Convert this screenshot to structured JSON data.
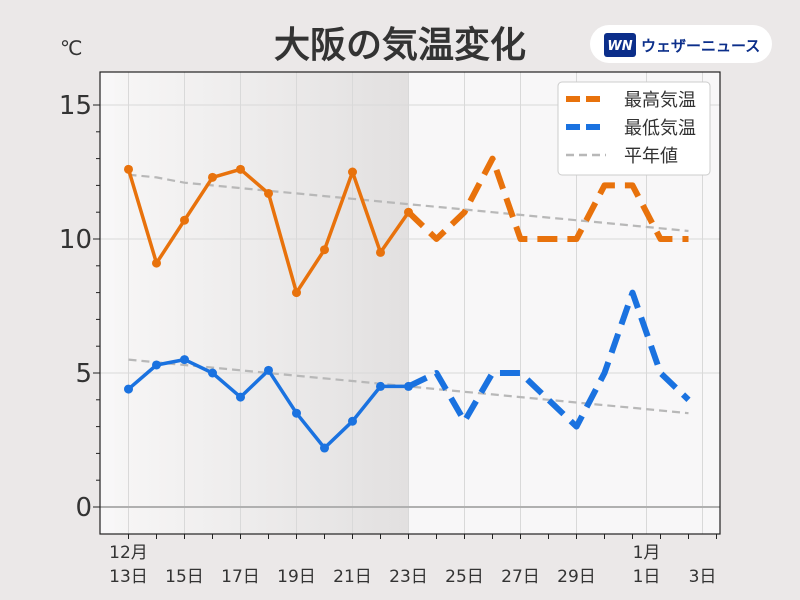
{
  "header": {
    "title": "大阪の気温変化",
    "unit": "℃",
    "brand_mark": "WN",
    "brand_name": "ウェザーニュース"
  },
  "colors": {
    "high": "#e8720c",
    "low": "#1a72e0",
    "normal": "#b8b8b8",
    "brand": "#0b2e8a"
  },
  "chart_data": {
    "type": "line",
    "title": "大阪の気温変化",
    "ylabel": "℃",
    "ylim": [
      -1,
      16
    ],
    "yticks": [
      0,
      5,
      10,
      15
    ],
    "grid": true,
    "legend_position": "top-right",
    "x_labels": [
      {
        "day": 1,
        "month": "12月",
        "date": "13日"
      },
      {
        "day": 3,
        "month": "",
        "date": "15日"
      },
      {
        "day": 5,
        "month": "",
        "date": "17日"
      },
      {
        "day": 7,
        "month": "",
        "date": "19日"
      },
      {
        "day": 9,
        "month": "",
        "date": "21日"
      },
      {
        "day": 11,
        "month": "",
        "date": "23日"
      },
      {
        "day": 13,
        "month": "",
        "date": "25日"
      },
      {
        "day": 15,
        "month": "",
        "date": "27日"
      },
      {
        "day": 17,
        "month": "",
        "date": "29日"
      },
      {
        "day": 19.5,
        "month": "1月",
        "date": "1日"
      },
      {
        "day": 21.5,
        "month": "",
        "date": "3日"
      }
    ],
    "observed_shading": {
      "from": 0.5,
      "to": 11
    },
    "series": [
      {
        "name": "最高気温",
        "observed": [
          [
            1,
            12.6
          ],
          [
            2,
            9.1
          ],
          [
            3,
            10.7
          ],
          [
            4,
            12.3
          ],
          [
            5,
            12.6
          ],
          [
            6,
            11.7
          ],
          [
            7,
            8.0
          ],
          [
            8,
            9.6
          ],
          [
            9,
            12.5
          ],
          [
            10,
            9.5
          ],
          [
            11,
            11.0
          ]
        ],
        "forecast": [
          [
            11,
            11.0
          ],
          [
            12,
            10.0
          ],
          [
            13,
            11.0
          ],
          [
            14,
            13.0
          ],
          [
            15,
            10.0
          ],
          [
            16,
            10.0
          ],
          [
            17,
            10.0
          ],
          [
            18,
            12.0
          ],
          [
            19,
            12.0
          ],
          [
            20,
            10.0
          ],
          [
            21,
            10.0
          ]
        ]
      },
      {
        "name": "最低気温",
        "observed": [
          [
            1,
            4.4
          ],
          [
            2,
            5.3
          ],
          [
            3,
            5.5
          ],
          [
            4,
            5.0
          ],
          [
            5,
            4.1
          ],
          [
            6,
            5.1
          ],
          [
            7,
            3.5
          ],
          [
            8,
            2.2
          ],
          [
            9,
            3.2
          ],
          [
            10,
            4.5
          ],
          [
            11,
            4.5
          ]
        ],
        "forecast": [
          [
            11,
            4.5
          ],
          [
            12,
            5.0
          ],
          [
            13,
            3.2
          ],
          [
            14,
            5.0
          ],
          [
            15,
            5.0
          ],
          [
            16,
            4.0
          ],
          [
            17,
            3.0
          ],
          [
            18,
            5.0
          ],
          [
            19,
            8.0
          ],
          [
            20,
            5.0
          ],
          [
            21,
            4.0
          ]
        ]
      },
      {
        "name": "平年値",
        "normal_high": [
          [
            1,
            12.4
          ],
          [
            2,
            12.3
          ],
          [
            3,
            12.1
          ],
          [
            4,
            12.0
          ],
          [
            5,
            11.9
          ],
          [
            6,
            11.8
          ],
          [
            7,
            11.7
          ],
          [
            8,
            11.6
          ],
          [
            9,
            11.5
          ],
          [
            10,
            11.4
          ],
          [
            11,
            11.3
          ],
          [
            12,
            11.2
          ],
          [
            13,
            11.1
          ],
          [
            14,
            11.0
          ],
          [
            15,
            10.9
          ],
          [
            16,
            10.8
          ],
          [
            17,
            10.7
          ],
          [
            18,
            10.6
          ],
          [
            19,
            10.5
          ],
          [
            20,
            10.4
          ],
          [
            21,
            10.3
          ]
        ],
        "normal_low": [
          [
            1,
            5.5
          ],
          [
            2,
            5.4
          ],
          [
            3,
            5.3
          ],
          [
            4,
            5.2
          ],
          [
            5,
            5.1
          ],
          [
            6,
            5.0
          ],
          [
            7,
            4.9
          ],
          [
            8,
            4.8
          ],
          [
            9,
            4.7
          ],
          [
            10,
            4.6
          ],
          [
            11,
            4.5
          ],
          [
            12,
            4.4
          ],
          [
            13,
            4.3
          ],
          [
            14,
            4.2
          ],
          [
            15,
            4.1
          ],
          [
            16,
            4.0
          ],
          [
            17,
            3.9
          ],
          [
            18,
            3.8
          ],
          [
            19,
            3.7
          ],
          [
            20,
            3.6
          ],
          [
            21,
            3.5
          ]
        ]
      }
    ]
  }
}
